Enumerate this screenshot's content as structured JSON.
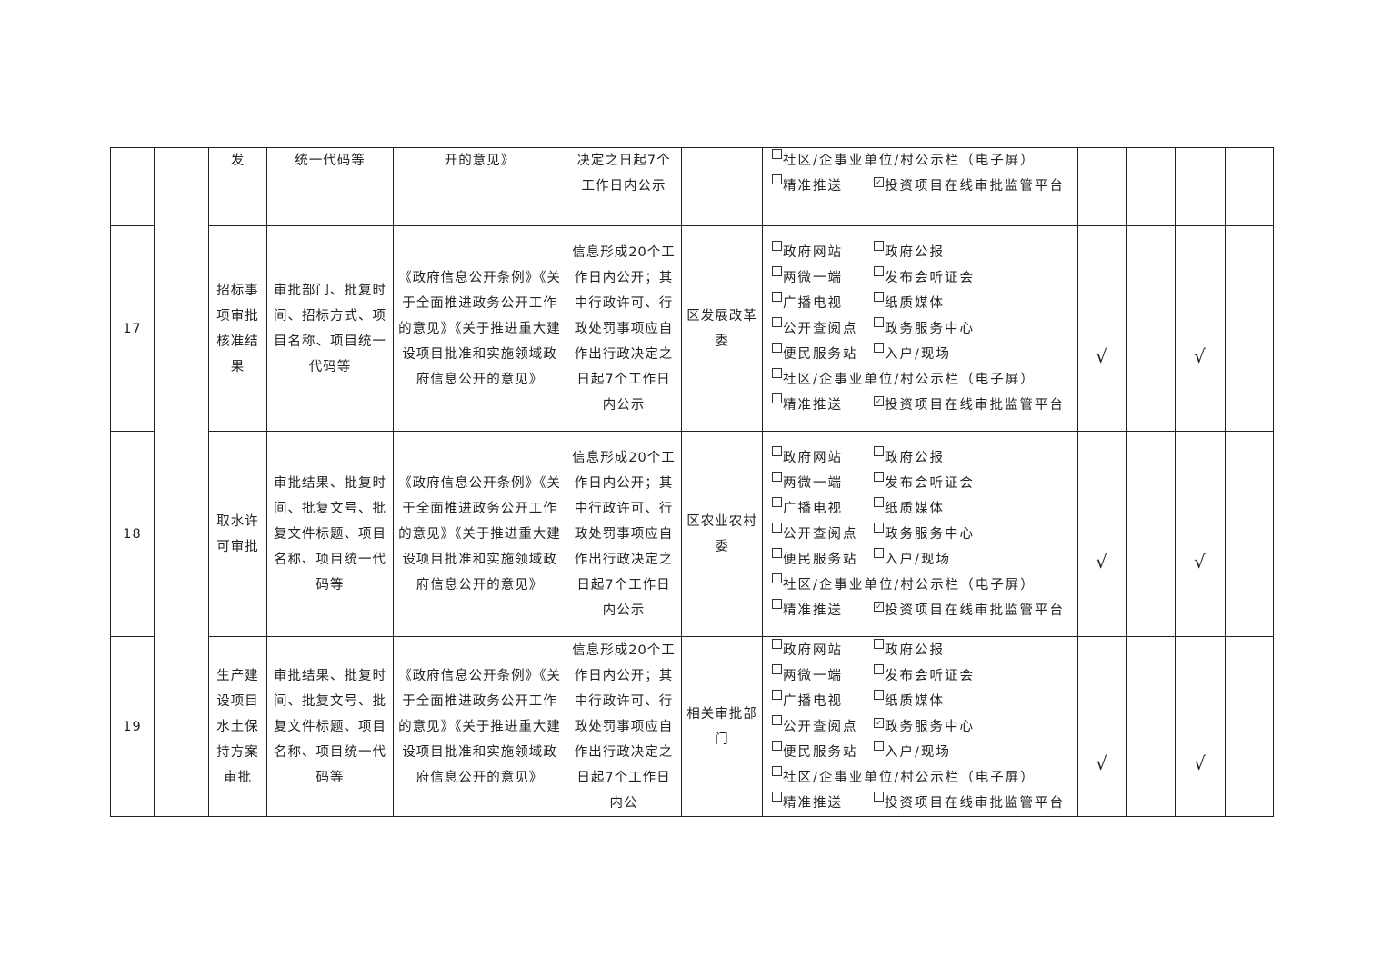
{
  "rows": [
    {
      "no": "",
      "item": "发",
      "content": "统一代码等",
      "basis": "开的意见》",
      "time": "决定之日起7个工作日内公示",
      "dept": "",
      "channels": [
        [
          {
            "label": "社区/企事业单位/村公示栏（电子屏）",
            "checked": false
          }
        ],
        [
          {
            "label": "精准推送",
            "checked": false
          },
          {
            "label": "投资项目在线审批监管平台",
            "checked": true
          }
        ]
      ],
      "check_a": "",
      "check_b": ""
    },
    {
      "no": "17",
      "item": "招标事项审批核准结果",
      "content": "审批部门、批复时间、招标方式、项目名称、项目统一代码等",
      "basis": "《政府信息公开条例》《关于全面推进政务公开工作的意见》《关于推进重大建设项目批准和实施领域政府信息公开的意见》",
      "time": "信息形成20个工作日内公开；其中行政许可、行政处罚事项应自作出行政决定之日起7个工作日内公示",
      "dept": "区发展改革委",
      "channels": [
        [
          {
            "label": "政府网站",
            "checked": false
          },
          {
            "label": "政府公报",
            "checked": false
          }
        ],
        [
          {
            "label": "两微一端",
            "checked": false
          },
          {
            "label": "发布会听证会",
            "checked": false
          }
        ],
        [
          {
            "label": "广播电视",
            "checked": false
          },
          {
            "label": "纸质媒体",
            "checked": false
          }
        ],
        [
          {
            "label": "公开查阅点",
            "checked": false
          },
          {
            "label": "政务服务中心",
            "checked": false
          }
        ],
        [
          {
            "label": "便民服务站",
            "checked": false
          },
          {
            "label": "入户/现场",
            "checked": false
          }
        ],
        [
          {
            "label": "社区/企事业单位/村公示栏（电子屏）",
            "checked": false
          }
        ],
        [
          {
            "label": "精准推送",
            "checked": false
          },
          {
            "label": "投资项目在线审批监管平台",
            "checked": true
          }
        ]
      ],
      "check_a": "√",
      "check_b": "√"
    },
    {
      "no": "18",
      "item": "取水许可审批",
      "content": "审批结果、批复时间、批复文号、批复文件标题、项目名称、项目统一代码等",
      "basis": "《政府信息公开条例》《关于全面推进政务公开工作的意见》《关于推进重大建设项目批准和实施领域政府信息公开的意见》",
      "time": "信息形成20个工作日内公开；其中行政许可、行政处罚事项应自作出行政决定之日起7个工作日内公示",
      "dept": "区农业农村委",
      "channels": [
        [
          {
            "label": "政府网站",
            "checked": false
          },
          {
            "label": "政府公报",
            "checked": false
          }
        ],
        [
          {
            "label": "两微一端",
            "checked": false
          },
          {
            "label": "发布会听证会",
            "checked": false
          }
        ],
        [
          {
            "label": "广播电视",
            "checked": false
          },
          {
            "label": "纸质媒体",
            "checked": false
          }
        ],
        [
          {
            "label": "公开查阅点",
            "checked": false
          },
          {
            "label": "政务服务中心",
            "checked": false
          }
        ],
        [
          {
            "label": "便民服务站",
            "checked": false
          },
          {
            "label": "入户/现场",
            "checked": false
          }
        ],
        [
          {
            "label": "社区/企事业单位/村公示栏（电子屏）",
            "checked": false
          }
        ],
        [
          {
            "label": "精准推送",
            "checked": false
          },
          {
            "label": "投资项目在线审批监管平台",
            "checked": true
          }
        ]
      ],
      "check_a": "√",
      "check_b": "√"
    },
    {
      "no": "19",
      "item": "生产建设项目水土保持方案审批",
      "content": "审批结果、批复时间、批复文号、批复文件标题、项目名称、项目统一代码等",
      "basis": "《政府信息公开条例》《关于全面推进政务公开工作的意见》《关于推进重大建设项目批准和实施领域政府信息公开的意见》",
      "time": "信息形成20个工作日内公开；其中行政许可、行政处罚事项应自作出行政决定之日起7个工作日内公",
      "dept": "相关审批部门",
      "channels": [
        [
          {
            "label": "政府网站",
            "checked": false
          },
          {
            "label": "政府公报",
            "checked": false
          }
        ],
        [
          {
            "label": "两微一端",
            "checked": false
          },
          {
            "label": "发布会听证会",
            "checked": false
          }
        ],
        [
          {
            "label": "广播电视",
            "checked": false
          },
          {
            "label": "纸质媒体",
            "checked": false
          }
        ],
        [
          {
            "label": "公开查阅点",
            "checked": false
          },
          {
            "label": "政务服务中心",
            "checked": true
          }
        ],
        [
          {
            "label": "便民服务站",
            "checked": false
          },
          {
            "label": "入户/现场",
            "checked": false
          }
        ],
        [
          {
            "label": "社区/企事业单位/村公示栏（电子屏）",
            "checked": false
          }
        ],
        [
          {
            "label": "精准推送",
            "checked": false
          },
          {
            "label": "投资项目在线审批监管平台",
            "checked": false
          }
        ]
      ],
      "check_a": "√",
      "check_b": "√"
    }
  ]
}
